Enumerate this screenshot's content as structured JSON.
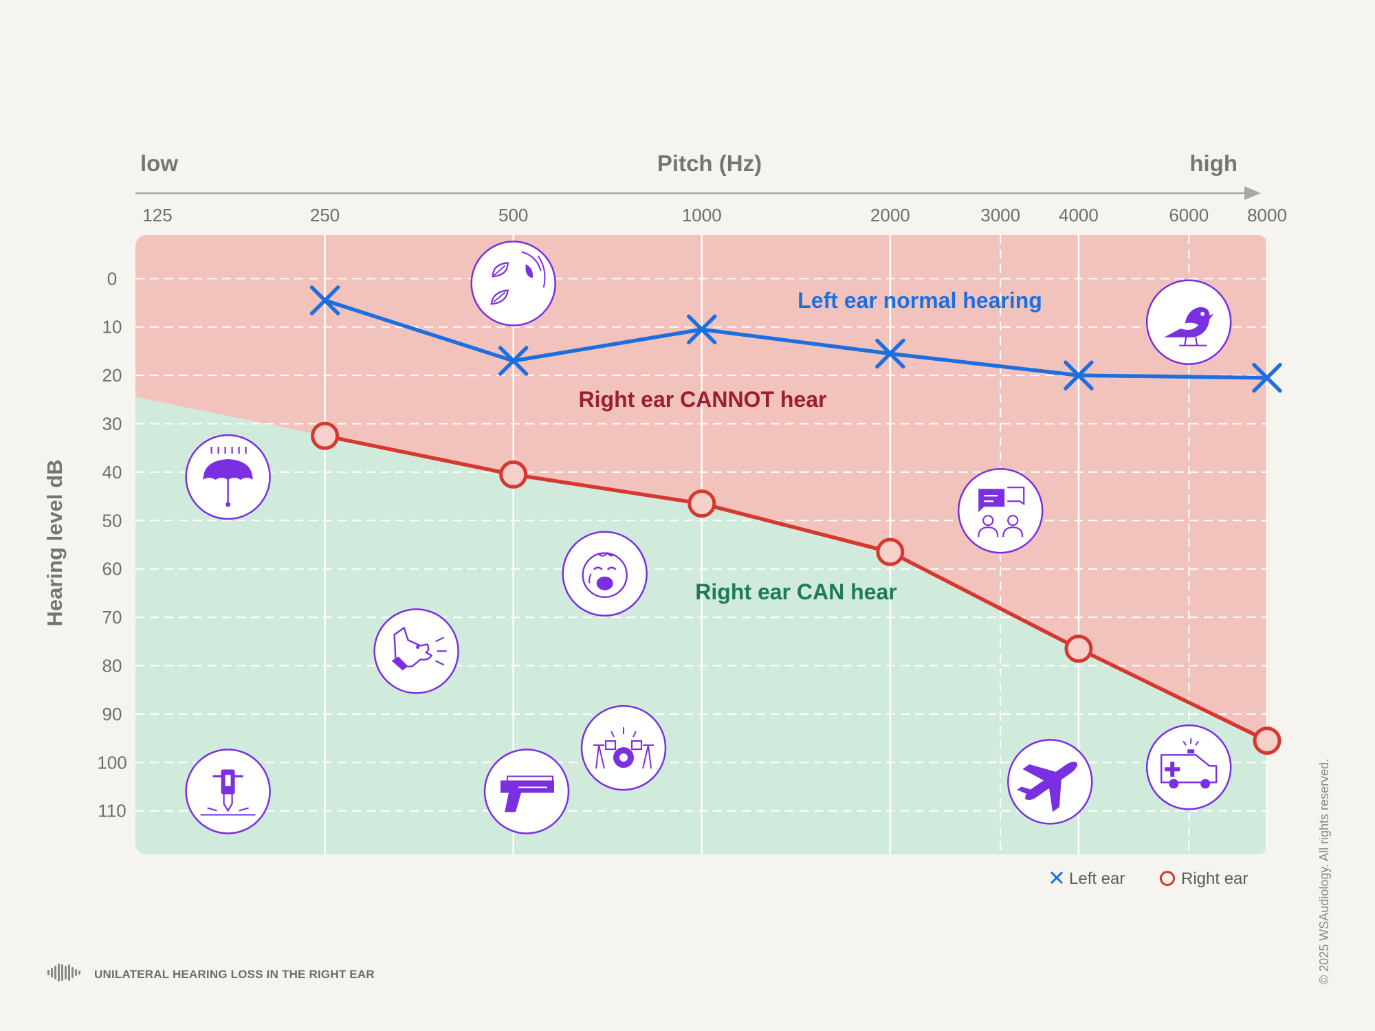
{
  "chart_data": {
    "type": "line",
    "title": "Pitch (Hz)",
    "x_low_label": "low",
    "x_high_label": "high",
    "xlabel": "Pitch (Hz)",
    "ylabel": "Hearing level dB",
    "x_ticks": [
      {
        "label": "125",
        "value": 125
      },
      {
        "label": "250",
        "value": 250
      },
      {
        "label": "500",
        "value": 500
      },
      {
        "label": "1000",
        "value": 1000
      },
      {
        "label": "2000",
        "value": 2000
      },
      {
        "label": "3000",
        "value": 3000
      },
      {
        "label": "4000",
        "value": 4000
      },
      {
        "label": "6000",
        "value": 6000
      },
      {
        "label": "8000",
        "value": 8000
      }
    ],
    "y_ticks": [
      "0",
      "10",
      "20",
      "30",
      "40",
      "50",
      "60",
      "70",
      "80",
      "90",
      "100",
      "110"
    ],
    "ylim": [
      -9,
      119
    ],
    "series": [
      {
        "name": "Left ear",
        "marker": "x",
        "color": "#1d6fe0",
        "x": [
          250,
          500,
          1000,
          2000,
          4000,
          8000
        ],
        "y": [
          4.5,
          17,
          10.5,
          15.5,
          20,
          20.5
        ]
      },
      {
        "name": "Right ear",
        "marker": "o",
        "color": "#d6372f",
        "x": [
          250,
          500,
          1000,
          2000,
          4000,
          8000
        ],
        "y": [
          32.5,
          40.5,
          46.5,
          56.5,
          76.5,
          95.5
        ]
      }
    ],
    "zones": [
      {
        "name": "cannot-hear",
        "label": "Right ear CANNOT hear",
        "fill": "#f2c3bc",
        "text_color": "#9b1f2e"
      },
      {
        "name": "can-hear",
        "label": "Right ear CAN hear",
        "fill": "#d0ebdc",
        "text_color": "#1f7a5c"
      }
    ],
    "annotations": {
      "left_ear_normal": {
        "text": "Left ear normal hearing",
        "color": "#1d6fe0"
      }
    },
    "legend": {
      "position": "bottom-right",
      "items": [
        {
          "label": "Left ear",
          "marker": "x"
        },
        {
          "label": "Right ear",
          "marker": "o"
        }
      ]
    },
    "icons": [
      {
        "name": "leaves-icon",
        "x": 500,
        "y": 1
      },
      {
        "name": "bird-icon",
        "x": 6000,
        "y": 9
      },
      {
        "name": "rain-umbrella-icon",
        "x": 175,
        "y": 41
      },
      {
        "name": "conversation-icon",
        "x": 3000,
        "y": 48
      },
      {
        "name": "crying-baby-icon",
        "x": 700,
        "y": 61
      },
      {
        "name": "barking-dog-icon",
        "x": 350,
        "y": 77
      },
      {
        "name": "drums-icon",
        "x": 750,
        "y": 97
      },
      {
        "name": "jackhammer-icon",
        "x": 175,
        "y": 106
      },
      {
        "name": "gun-icon",
        "x": 525,
        "y": 106
      },
      {
        "name": "airplane-icon",
        "x": 3600,
        "y": 104
      },
      {
        "name": "ambulance-icon",
        "x": 6000,
        "y": 101
      }
    ]
  },
  "footer": {
    "title": "UNILATERAL HEARING LOSS IN THE RIGHT EAR"
  },
  "copyright": "© 2025 WSAudiology. All rights reserved.",
  "colors": {
    "background": "#f5f4ee",
    "icon_purple": "#7a2fe0",
    "grid": "#ffffff",
    "axis_text": "#6f6d68"
  }
}
